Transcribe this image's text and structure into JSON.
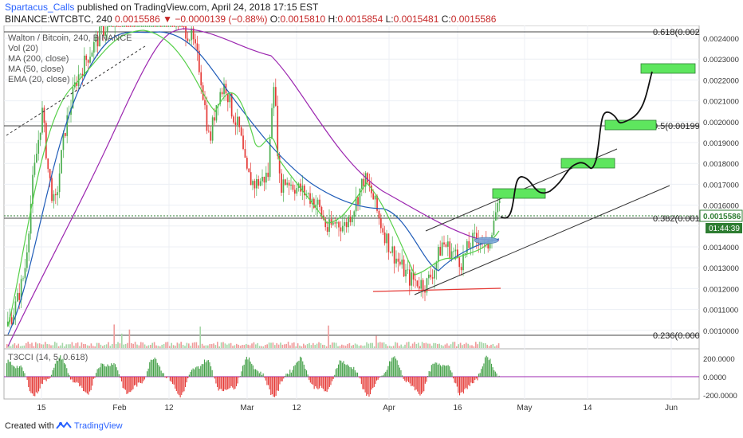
{
  "header": {
    "author": "Spartacus_Calls",
    "published": "published on TradingView.com, April 24, 2018 17:15 EST",
    "symbol": "BINANCE:WTCBTC, 240",
    "last": "0.0015586",
    "change": "−0.0000139 (−0.88%)",
    "ohlc": {
      "o_label": "O:",
      "o": "0.0015810",
      "h_label": "H:",
      "h": "0.0015854",
      "l_label": "L:",
      "l": "0.0015481",
      "c_label": "C:",
      "c": "0.0015586"
    }
  },
  "indicators": [
    "Walton / Bitcoin, 240, BINANCE",
    "Vol (20)",
    "MA (200, close)",
    "MA (50, close)",
    "EMA (20, close)"
  ],
  "t3_label": "T3CCI (14, 5, 0.618)",
  "fib_labels": [
    "0.618(0.002",
    "0.5(0.00199",
    "0.382(0.001",
    "0.236(0.000"
  ],
  "price_axis": [
    "0.0024000",
    "0.0023000",
    "0.0022000",
    "0.0021000",
    "0.0020000",
    "0.0019000",
    "0.0018000",
    "0.0017000",
    "0.0016000",
    "0.0014000",
    "0.0013000",
    "0.0012000",
    "0.0011000",
    "0.0010000"
  ],
  "price_tag": "0.0015586",
  "countdown": "01:44:39",
  "osc_axis": [
    "200.0000",
    "0.0000",
    "-200.0000"
  ],
  "time_axis": [
    "15",
    "Feb",
    "12",
    "Mar",
    "12",
    "Apr",
    "16",
    "May",
    "14",
    "Jun"
  ],
  "footer": {
    "created": "Created with",
    "brand": "TradingView"
  },
  "colors": {
    "up": "#4caf50",
    "down": "#e53935",
    "ma200": "#9c27b0",
    "ma50": "#1e5bb8",
    "ema20": "#57d04a",
    "target_box": "#5ee65e",
    "price_tag": "#2e7d32",
    "author": "#2962ff"
  }
}
